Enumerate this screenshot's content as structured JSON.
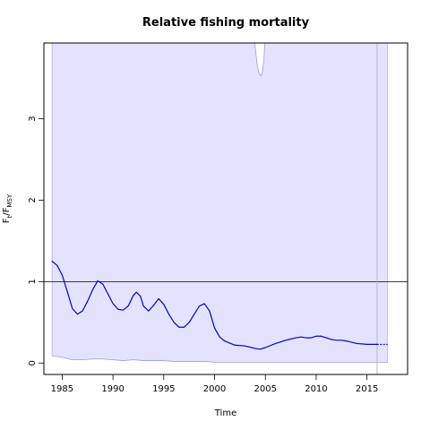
{
  "chart_data": {
    "type": "line",
    "title": "Relative fishing mortality",
    "xlabel": "Time",
    "ylabel": {
      "main": "F",
      "sub1": "t",
      "sep": "/F",
      "sub2": "MSY"
    },
    "xlim": [
      1983.2,
      2019.0
    ],
    "ylim": [
      -0.14,
      3.93
    ],
    "xticks": [
      "1985",
      "1990",
      "1995",
      "2000",
      "2005",
      "2010",
      "2015"
    ],
    "yticks": [
      "0",
      "1",
      "2",
      "3"
    ],
    "reference_line": 1,
    "current_year_marker": 2016,
    "colors": {
      "line": "#0000cc",
      "band": "#e3e3ff",
      "band_edge": "#9a9ae8",
      "ref": "#000000",
      "vline": "#aaaaaa"
    },
    "series": [
      {
        "values": [
          [
            1984.0,
            1.25
          ],
          [
            1984.5,
            1.2
          ],
          [
            1985.0,
            1.08
          ],
          [
            1985.5,
            0.88
          ],
          [
            1986.0,
            0.67
          ],
          [
            1986.5,
            0.6
          ],
          [
            1987.0,
            0.64
          ],
          [
            1987.5,
            0.76
          ],
          [
            1988.0,
            0.9
          ],
          [
            1988.5,
            1.01
          ],
          [
            1989.0,
            0.97
          ],
          [
            1989.5,
            0.85
          ],
          [
            1990.0,
            0.73
          ],
          [
            1990.5,
            0.66
          ],
          [
            1991.0,
            0.65
          ],
          [
            1991.5,
            0.7
          ],
          [
            1992.0,
            0.83
          ],
          [
            1992.3,
            0.87
          ],
          [
            1992.7,
            0.82
          ],
          [
            1993.0,
            0.7
          ],
          [
            1993.5,
            0.64
          ],
          [
            1994.0,
            0.71
          ],
          [
            1994.5,
            0.79
          ],
          [
            1995.0,
            0.72
          ],
          [
            1995.5,
            0.6
          ],
          [
            1996.0,
            0.5
          ],
          [
            1996.5,
            0.44
          ],
          [
            1997.0,
            0.44
          ],
          [
            1997.5,
            0.5
          ],
          [
            1998.0,
            0.6
          ],
          [
            1998.5,
            0.7
          ],
          [
            1999.0,
            0.73
          ],
          [
            1999.5,
            0.64
          ],
          [
            2000.0,
            0.43
          ],
          [
            2000.5,
            0.32
          ],
          [
            2001.0,
            0.27
          ],
          [
            2002.0,
            0.22
          ],
          [
            2003.0,
            0.21
          ],
          [
            2004.0,
            0.18
          ],
          [
            2004.5,
            0.17
          ],
          [
            2005.0,
            0.19
          ],
          [
            2006.0,
            0.24
          ],
          [
            2007.0,
            0.28
          ],
          [
            2008.0,
            0.31
          ],
          [
            2008.5,
            0.32
          ],
          [
            2009.0,
            0.31
          ],
          [
            2009.5,
            0.31
          ],
          [
            2010.0,
            0.33
          ],
          [
            2010.5,
            0.33
          ],
          [
            2011.0,
            0.31
          ],
          [
            2011.5,
            0.29
          ],
          [
            2012.0,
            0.28
          ],
          [
            2012.5,
            0.28
          ],
          [
            2013.0,
            0.27
          ],
          [
            2014.0,
            0.24
          ],
          [
            2015.0,
            0.23
          ],
          [
            2016.0,
            0.23
          ]
        ]
      },
      {
        "style": "dotted",
        "values": [
          [
            2016.0,
            0.23
          ],
          [
            2017.0,
            0.23
          ]
        ]
      }
    ],
    "confidence_band": {
      "lower": [
        [
          1984.0,
          0.09
        ],
        [
          1985.0,
          0.07
        ],
        [
          1986.0,
          0.04
        ],
        [
          1987.0,
          0.04
        ],
        [
          1988.0,
          0.05
        ],
        [
          1989.0,
          0.05
        ],
        [
          1990.0,
          0.04
        ],
        [
          1991.0,
          0.03
        ],
        [
          1992.0,
          0.04
        ],
        [
          1993.0,
          0.03
        ],
        [
          1994.0,
          0.03
        ],
        [
          1995.0,
          0.03
        ],
        [
          1996.0,
          0.02
        ],
        [
          1997.0,
          0.02
        ],
        [
          1998.0,
          0.02
        ],
        [
          1999.0,
          0.02
        ],
        [
          2000.0,
          0.01
        ],
        [
          2002.0,
          0.01
        ],
        [
          2004.0,
          0.01
        ],
        [
          2006.0,
          0.01
        ],
        [
          2008.0,
          0.01
        ],
        [
          2010.0,
          0.01
        ],
        [
          2012.0,
          0.01
        ],
        [
          2014.0,
          0.01
        ],
        [
          2017.0,
          0.01
        ]
      ],
      "upper_dip": [
        [
          2003.95,
          3.93
        ],
        [
          2004.05,
          3.82
        ],
        [
          2004.2,
          3.66
        ],
        [
          2004.4,
          3.55
        ],
        [
          2004.55,
          3.53
        ],
        [
          2004.7,
          3.57
        ],
        [
          2004.85,
          3.72
        ],
        [
          2004.95,
          3.93
        ]
      ]
    }
  }
}
